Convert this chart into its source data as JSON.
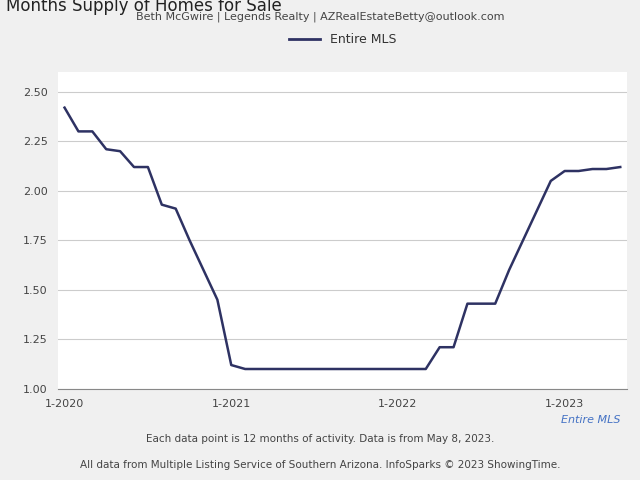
{
  "header_text": "Beth McGwire | Legends Realty | AZRealEstateBetty@outlook.com",
  "title": "Months Supply of Homes for Sale",
  "legend_label": "Entire MLS",
  "footer1": "Each data point is 12 months of activity. Data is from May 8, 2023.",
  "footer2": "All data from Multiple Listing Service of Southern Arizona. InfoSparks © 2023 ShowingTime.",
  "footer_label": "Entire MLS",
  "line_color": "#2e3263",
  "line_width": 1.8,
  "ylim": [
    1.0,
    2.6
  ],
  "yticks": [
    1.0,
    1.25,
    1.5,
    1.75,
    2.0,
    2.25,
    2.5
  ],
  "x_tick_labels": [
    "1-2020",
    "1-2021",
    "1-2022",
    "1-2023"
  ],
  "background_color": "#f0f0f0",
  "plot_bg_color": "#ffffff",
  "x_tick_positions": [
    0,
    12,
    24,
    36
  ],
  "xlim": [
    -0.5,
    40.5
  ],
  "data_x": [
    0,
    1,
    2,
    3,
    4,
    5,
    6,
    7,
    8,
    9,
    10,
    11,
    12,
    13,
    14,
    15,
    16,
    17,
    18,
    19,
    20,
    21,
    22,
    23,
    24,
    25,
    26,
    27,
    28,
    29,
    30,
    31,
    32,
    33,
    34,
    35,
    36,
    37,
    38,
    39,
    40
  ],
  "data_y": [
    2.42,
    2.3,
    2.3,
    2.21,
    2.2,
    2.12,
    2.12,
    1.93,
    1.91,
    1.75,
    1.6,
    1.45,
    1.12,
    1.1,
    1.1,
    1.1,
    1.1,
    1.1,
    1.1,
    1.1,
    1.1,
    1.1,
    1.1,
    1.1,
    1.1,
    1.1,
    1.1,
    1.21,
    1.21,
    1.43,
    1.43,
    1.43,
    1.6,
    1.75,
    1.9,
    2.05,
    2.1,
    2.1,
    2.11,
    2.11,
    2.12
  ]
}
